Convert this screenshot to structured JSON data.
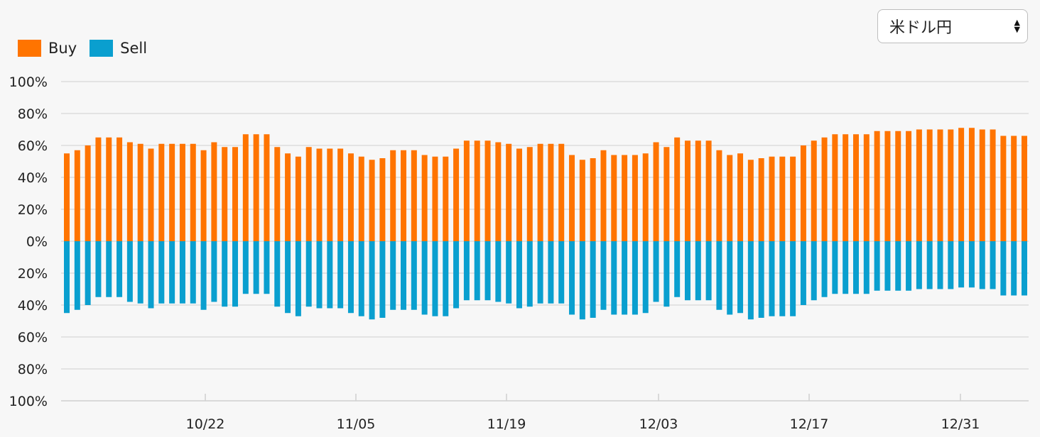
{
  "select": {
    "value": "米ドル円"
  },
  "colors": {
    "buy": "#ff7400",
    "sell": "#0a9fcf",
    "grid": "#cfcfcf",
    "text": "#222222"
  },
  "chart_data": {
    "type": "bar",
    "legend": [
      {
        "name": "Buy",
        "color": "#ff7400"
      },
      {
        "name": "Sell",
        "color": "#0a9fcf"
      }
    ],
    "y_ticks": [
      "100%",
      "80%",
      "60%",
      "40%",
      "20%",
      "0%",
      "20%",
      "40%",
      "60%",
      "80%",
      "100%"
    ],
    "x_tick_labels": [
      "10/22",
      "11/05",
      "11/19",
      "12/03",
      "12/17",
      "12/31"
    ],
    "ylim": [
      -100,
      100
    ],
    "series": [
      {
        "name": "Buy",
        "values": [
          55,
          57,
          60,
          65,
          65,
          65,
          62,
          61,
          58,
          61,
          61,
          61,
          61,
          57,
          62,
          59,
          59,
          67,
          67,
          67,
          59,
          55,
          53,
          59,
          58,
          58,
          58,
          55,
          53,
          51,
          52,
          57,
          57,
          57,
          54,
          53,
          53,
          58,
          63,
          63,
          63,
          62,
          61,
          58,
          59,
          61,
          61,
          61,
          54,
          51,
          52,
          57,
          54,
          54,
          54,
          55,
          62,
          59,
          65,
          63,
          63,
          63,
          57,
          54,
          55,
          51,
          52,
          53,
          53,
          53,
          60,
          63,
          65,
          67,
          67,
          67,
          67,
          69,
          69,
          69,
          69,
          70,
          70,
          70,
          70,
          71,
          71,
          70,
          70,
          66,
          66,
          66
        ]
      },
      {
        "name": "Sell",
        "values": [
          45,
          43,
          40,
          35,
          35,
          35,
          38,
          39,
          42,
          39,
          39,
          39,
          39,
          43,
          38,
          41,
          41,
          33,
          33,
          33,
          41,
          45,
          47,
          41,
          42,
          42,
          42,
          45,
          47,
          49,
          48,
          43,
          43,
          43,
          46,
          47,
          47,
          42,
          37,
          37,
          37,
          38,
          39,
          42,
          41,
          39,
          39,
          39,
          46,
          49,
          48,
          43,
          46,
          46,
          46,
          45,
          38,
          41,
          35,
          37,
          37,
          37,
          43,
          46,
          45,
          49,
          48,
          47,
          47,
          47,
          40,
          37,
          35,
          33,
          33,
          33,
          33,
          31,
          31,
          31,
          31,
          30,
          30,
          30,
          30,
          29,
          29,
          30,
          30,
          34,
          34,
          34
        ]
      }
    ]
  }
}
